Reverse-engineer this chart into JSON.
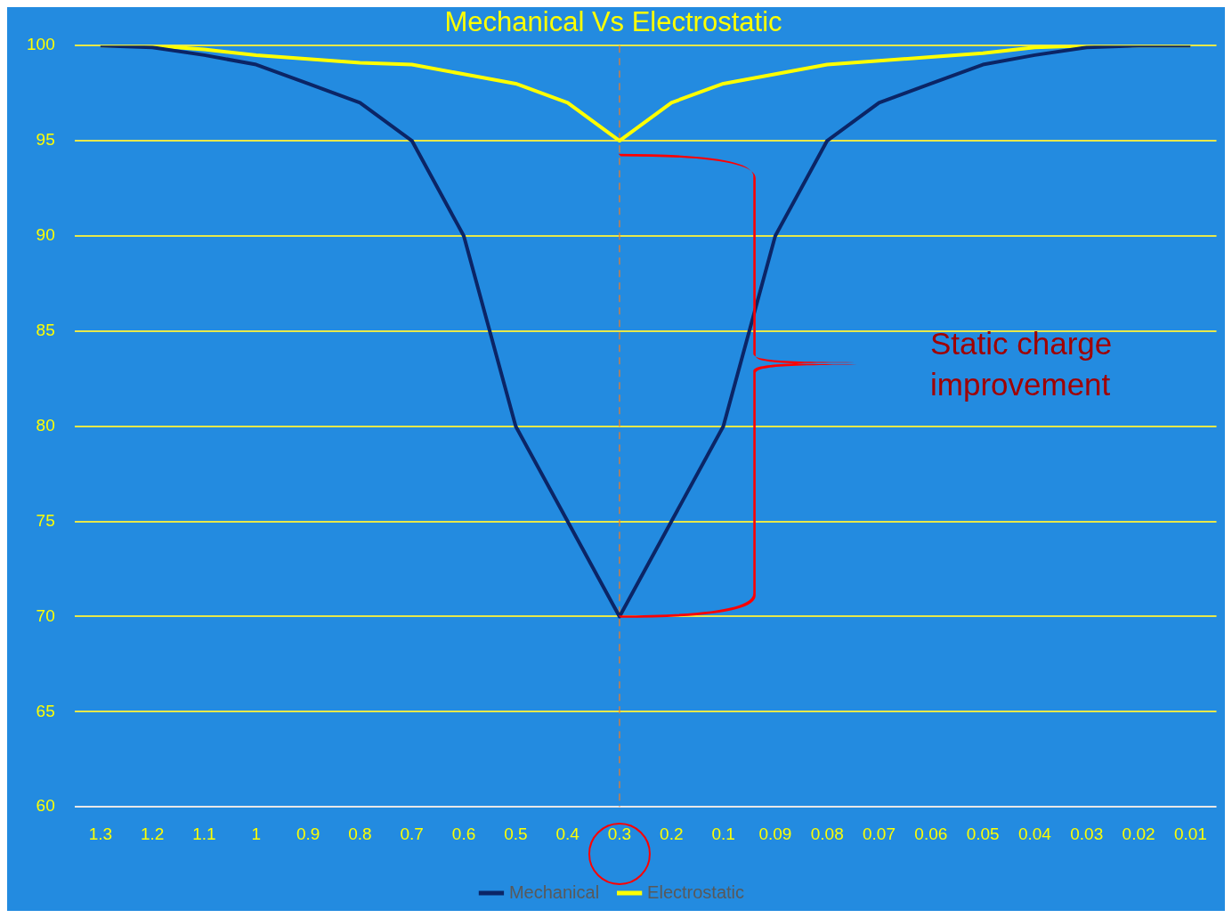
{
  "chart_data": {
    "type": "line",
    "title": "Mechanical Vs Electrostatic",
    "categories": [
      "1.3",
      "1.2",
      "1.1",
      "1",
      "0.9",
      "0.8",
      "0.7",
      "0.6",
      "0.5",
      "0.4",
      "0.3",
      "0.2",
      "0.1",
      "0.09",
      "0.08",
      "0.07",
      "0.06",
      "0.05",
      "0.04",
      "0.03",
      "0.02",
      "0.01"
    ],
    "series": [
      {
        "name": "Mechanical",
        "color": "#0b2566",
        "values": [
          100,
          99.9,
          99.5,
          99,
          98,
          97,
          95,
          90,
          80,
          75,
          70,
          75,
          80,
          90,
          95,
          97,
          98,
          99,
          99.5,
          99.9,
          100,
          100
        ]
      },
      {
        "name": "Electrostatic",
        "color": "#ffff00",
        "values": [
          100,
          100,
          99.8,
          99.5,
          99.3,
          99.1,
          99,
          98.5,
          98,
          97,
          95,
          97,
          98,
          98.5,
          99,
          99.2,
          99.4,
          99.6,
          99.9,
          100,
          100,
          100
        ]
      }
    ],
    "ylim": [
      60,
      100
    ],
    "yticks": [
      60,
      65,
      70,
      75,
      80,
      85,
      90,
      95,
      100
    ],
    "grid": "y",
    "legend": "bottom",
    "marker": "none",
    "line_style": "solid",
    "ref_lines": [
      {
        "axis": "x",
        "value": "0.3",
        "color": "#f47b20",
        "line_style": "dashed"
      }
    ],
    "annotations": [
      "Static charge improvement"
    ]
  }
}
